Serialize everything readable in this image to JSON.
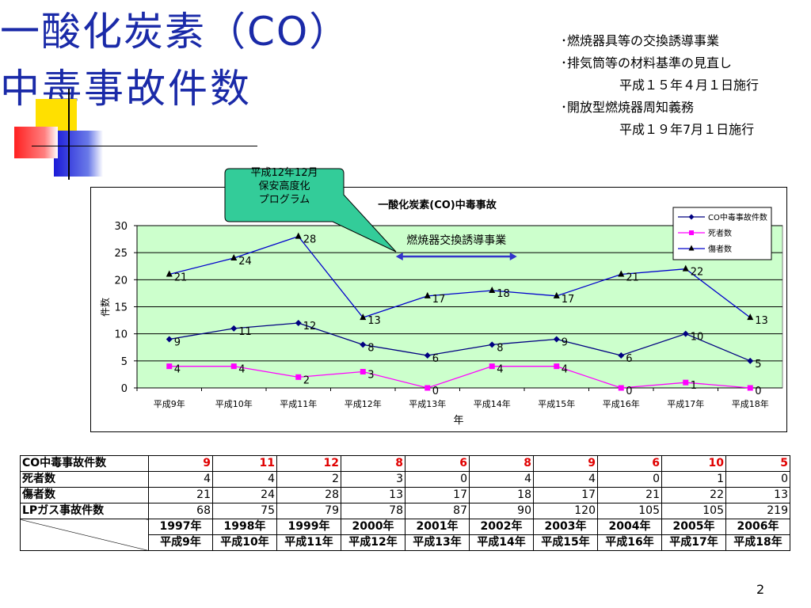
{
  "slide": {
    "title_line1": "一酸化炭素（CO）",
    "title_line2": "中毒事故件数",
    "notes": [
      "･燃焼器具等の交換誘導事業",
      "･排気筒等の材料基準の見直し",
      "平成１５年４月１日施行",
      "･開放型燃焼器周知義務",
      "平成１９年7月１日施行"
    ],
    "callout": [
      "平成12年12月",
      "保安高度化",
      "プログラム"
    ],
    "page_number": "2"
  },
  "colors": {
    "title": "#1a2aa8",
    "plot_bg": "#ccffcc",
    "co_series": "#000080",
    "death_series": "#ff00ff",
    "injury_series": "#0000cc",
    "callout_fill": "#33cc99",
    "arrow": "#3333cc",
    "table_highlight": "#e00000"
  },
  "chart_data": {
    "type": "line",
    "title": "一酸化炭素(CO)中毒事故",
    "xlabel": "年",
    "ylabel": "件数",
    "ylim": [
      0,
      30
    ],
    "yticks": [
      0,
      5,
      10,
      15,
      20,
      25,
      30
    ],
    "grid": true,
    "legend_position": "top-right",
    "categories": [
      "平成9年",
      "平成10年",
      "平成11年",
      "平成12年",
      "平成13年",
      "平成14年",
      "平成15年",
      "平成16年",
      "平成17年",
      "平成18年"
    ],
    "series": [
      {
        "name": "CO中毒事故件数",
        "values": [
          9,
          11,
          12,
          8,
          6,
          8,
          9,
          6,
          10,
          5
        ],
        "marker": "diamond"
      },
      {
        "name": "死者数",
        "values": [
          4,
          4,
          2,
          3,
          0,
          4,
          4,
          0,
          1,
          0
        ],
        "marker": "square"
      },
      {
        "name": "傷者数",
        "values": [
          21,
          24,
          28,
          13,
          17,
          18,
          17,
          21,
          22,
          13
        ],
        "marker": "triangle"
      }
    ],
    "annotation": {
      "text": "燃焼器交換誘導事業",
      "from_category": "平成13年",
      "to_category": "平成15年"
    }
  },
  "table": {
    "rows": [
      {
        "label": "CO中毒事故件数",
        "values": [
          9,
          11,
          12,
          8,
          6,
          8,
          9,
          6,
          10,
          5
        ],
        "highlight": true
      },
      {
        "label": "死者数",
        "values": [
          4,
          4,
          2,
          3,
          0,
          4,
          4,
          0,
          1,
          0
        ]
      },
      {
        "label": "傷者数",
        "values": [
          21,
          24,
          28,
          13,
          17,
          18,
          17,
          21,
          22,
          13
        ]
      },
      {
        "label": "LPガス事故件数",
        "values": [
          68,
          75,
          79,
          78,
          87,
          90,
          120,
          105,
          105,
          219
        ]
      }
    ],
    "years_western": [
      "1997年",
      "1998年",
      "1999年",
      "2000年",
      "2001年",
      "2002年",
      "2003年",
      "2004年",
      "2005年",
      "2006年"
    ],
    "years_japanese": [
      "平成9年",
      "平成10年",
      "平成11年",
      "平成12年",
      "平成13年",
      "平成14年",
      "平成15年",
      "平成16年",
      "平成17年",
      "平成18年"
    ]
  }
}
